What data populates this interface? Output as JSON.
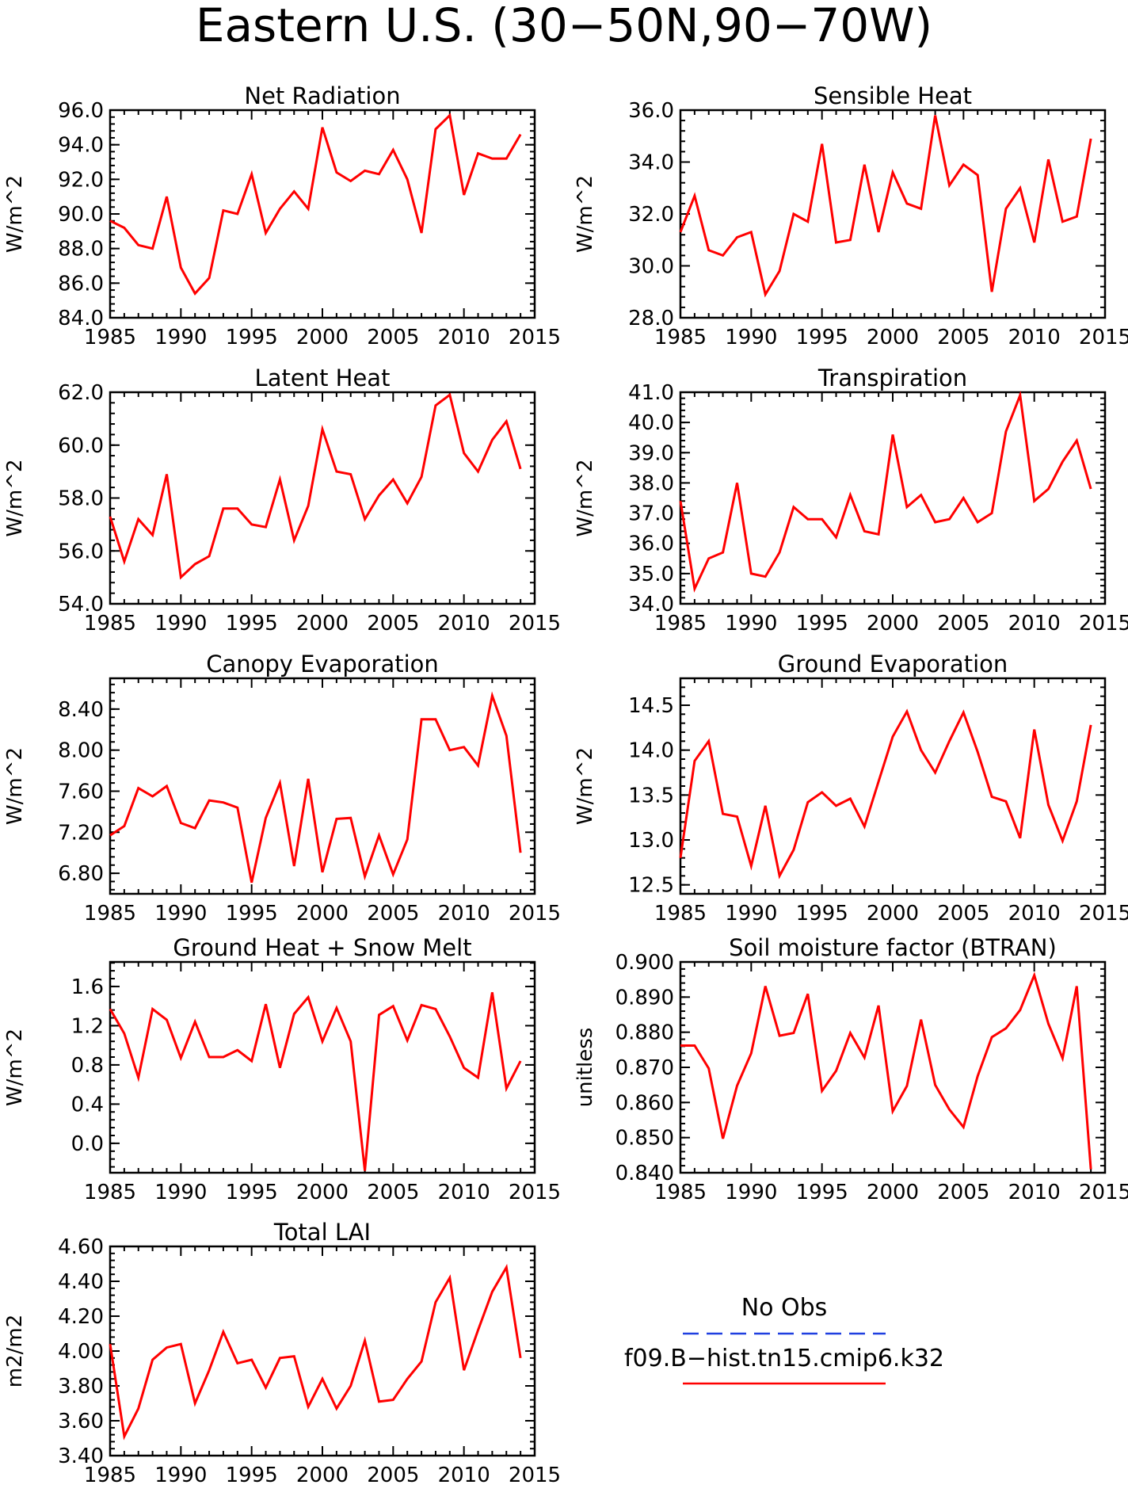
{
  "figure": {
    "title": "Eastern U.S. (30−50N,90−70W)",
    "legend": {
      "obs_label": "No Obs",
      "model_label": "f09.B−hist.tn15.cmip6.k32",
      "obs_color": "#1f3fe0",
      "model_color": "#ff0000"
    }
  },
  "chart_data": [
    {
      "type": "line",
      "title": "Net Radiation",
      "ylabel": "W/m^2",
      "xlim": [
        1985,
        2015
      ],
      "ylim": [
        84,
        96
      ],
      "xticks": [
        "1985",
        "1990",
        "1995",
        "2000",
        "2005",
        "2010",
        "2015"
      ],
      "yticks": [
        "84.0",
        "86.0",
        "88.0",
        "90.0",
        "92.0",
        "94.0",
        "96.0"
      ],
      "series": [
        {
          "color": "#ff0000",
          "x": [
            1985,
            1986,
            1987,
            1988,
            1989,
            1990,
            1991,
            1992,
            1993,
            1994,
            1995,
            1996,
            1997,
            1998,
            1999,
            2000,
            2001,
            2002,
            2003,
            2004,
            2005,
            2006,
            2007,
            2008,
            2009,
            2010,
            2011,
            2012,
            2013,
            2014
          ],
          "values": [
            89.6,
            89.2,
            88.2,
            88.0,
            91.0,
            86.9,
            85.4,
            86.3,
            90.2,
            90.0,
            92.3,
            88.9,
            90.3,
            91.3,
            90.3,
            95.0,
            92.4,
            91.9,
            92.5,
            92.3,
            93.7,
            92.0,
            88.9,
            94.9,
            95.7,
            91.1,
            93.5,
            93.2,
            93.2,
            94.6
          ]
        }
      ]
    },
    {
      "type": "line",
      "title": "Sensible Heat",
      "ylabel": "W/m^2",
      "xlim": [
        1985,
        2015
      ],
      "ylim": [
        28,
        36
      ],
      "xticks": [
        "1985",
        "1990",
        "1995",
        "2000",
        "2005",
        "2010",
        "2015"
      ],
      "yticks": [
        "28.0",
        "30.0",
        "32.0",
        "34.0",
        "36.0"
      ],
      "series": [
        {
          "color": "#ff0000",
          "x": [
            1985,
            1986,
            1987,
            1988,
            1989,
            1990,
            1991,
            1992,
            1993,
            1994,
            1995,
            1996,
            1997,
            1998,
            1999,
            2000,
            2001,
            2002,
            2003,
            2004,
            2005,
            2006,
            2007,
            2008,
            2009,
            2010,
            2011,
            2012,
            2013,
            2014
          ],
          "values": [
            31.3,
            32.7,
            30.6,
            30.4,
            31.1,
            31.3,
            28.9,
            29.8,
            32.0,
            31.7,
            34.7,
            30.9,
            31.0,
            33.9,
            31.3,
            33.6,
            32.4,
            32.2,
            35.8,
            33.1,
            33.9,
            33.5,
            29.0,
            32.2,
            33.0,
            30.9,
            34.1,
            31.7,
            31.9,
            34.9
          ]
        }
      ]
    },
    {
      "type": "line",
      "title": "Latent Heat",
      "ylabel": "W/m^2",
      "xlim": [
        1985,
        2015
      ],
      "ylim": [
        54,
        62
      ],
      "xticks": [
        "1985",
        "1990",
        "1995",
        "2000",
        "2005",
        "2010",
        "2015"
      ],
      "yticks": [
        "54.0",
        "56.0",
        "58.0",
        "60.0",
        "62.0"
      ],
      "series": [
        {
          "color": "#ff0000",
          "x": [
            1985,
            1986,
            1987,
            1988,
            1989,
            1990,
            1991,
            1992,
            1993,
            1994,
            1995,
            1996,
            1997,
            1998,
            1999,
            2000,
            2001,
            2002,
            2003,
            2004,
            2005,
            2006,
            2007,
            2008,
            2009,
            2010,
            2011,
            2012,
            2013,
            2014
          ],
          "values": [
            57.3,
            55.6,
            57.2,
            56.6,
            58.9,
            55.0,
            55.5,
            55.8,
            57.6,
            57.6,
            57.0,
            56.9,
            58.7,
            56.4,
            57.7,
            60.6,
            59.0,
            58.9,
            57.2,
            58.1,
            58.7,
            57.8,
            58.8,
            61.5,
            61.9,
            59.7,
            59.0,
            60.2,
            60.9,
            59.1
          ]
        }
      ]
    },
    {
      "type": "line",
      "title": "Transpiration",
      "ylabel": "W/m^2",
      "xlim": [
        1985,
        2015
      ],
      "ylim": [
        34,
        41
      ],
      "xticks": [
        "1985",
        "1990",
        "1995",
        "2000",
        "2005",
        "2010",
        "2015"
      ],
      "yticks": [
        "34.0",
        "35.0",
        "36.0",
        "37.0",
        "38.0",
        "39.0",
        "40.0",
        "41.0"
      ],
      "series": [
        {
          "color": "#ff0000",
          "x": [
            1985,
            1986,
            1987,
            1988,
            1989,
            1990,
            1991,
            1992,
            1993,
            1994,
            1995,
            1996,
            1997,
            1998,
            1999,
            2000,
            2001,
            2002,
            2003,
            2004,
            2005,
            2006,
            2007,
            2008,
            2009,
            2010,
            2011,
            2012,
            2013,
            2014
          ],
          "values": [
            37.4,
            34.5,
            35.5,
            35.7,
            38.0,
            35.0,
            34.9,
            35.7,
            37.2,
            36.8,
            36.8,
            36.2,
            37.6,
            36.4,
            36.3,
            39.6,
            37.2,
            37.6,
            36.7,
            36.8,
            37.5,
            36.7,
            37.0,
            39.7,
            40.9,
            37.4,
            37.8,
            38.7,
            39.4,
            37.8
          ]
        }
      ]
    },
    {
      "type": "line",
      "title": "Canopy Evaporation",
      "ylabel": "W/m^2",
      "xlim": [
        1985,
        2015
      ],
      "ylim": [
        6.6,
        8.7
      ],
      "xticks": [
        "1985",
        "1990",
        "1995",
        "2000",
        "2005",
        "2010",
        "2015"
      ],
      "yticks": [
        "6.80",
        "7.20",
        "7.60",
        "8.00",
        "8.40"
      ],
      "series": [
        {
          "color": "#ff0000",
          "x": [
            1985,
            1986,
            1987,
            1988,
            1989,
            1990,
            1991,
            1992,
            1993,
            1994,
            1995,
            1996,
            1997,
            1998,
            1999,
            2000,
            2001,
            2002,
            2003,
            2004,
            2005,
            2006,
            2007,
            2008,
            2009,
            2010,
            2011,
            2012,
            2013,
            2014
          ],
          "values": [
            7.17,
            7.26,
            7.63,
            7.55,
            7.65,
            7.29,
            7.24,
            7.51,
            7.49,
            7.44,
            6.71,
            7.34,
            7.68,
            6.87,
            7.72,
            6.81,
            7.33,
            7.34,
            6.77,
            7.17,
            6.79,
            7.13,
            8.3,
            8.3,
            8.0,
            8.03,
            7.85,
            8.53,
            8.14,
            7.0
          ]
        }
      ]
    },
    {
      "type": "line",
      "title": "Ground Evaporation",
      "ylabel": "W/m^2",
      "xlim": [
        1985,
        2015
      ],
      "ylim": [
        12.4,
        14.8
      ],
      "xticks": [
        "1985",
        "1990",
        "1995",
        "2000",
        "2005",
        "2010",
        "2015"
      ],
      "yticks": [
        "12.5",
        "13.0",
        "13.5",
        "14.0",
        "14.5"
      ],
      "series": [
        {
          "color": "#ff0000",
          "x": [
            1985,
            1986,
            1987,
            1988,
            1989,
            1990,
            1991,
            1992,
            1993,
            1994,
            1995,
            1996,
            1997,
            1998,
            1999,
            2000,
            2001,
            2002,
            2003,
            2004,
            2005,
            2006,
            2007,
            2008,
            2009,
            2010,
            2011,
            2012,
            2013,
            2014
          ],
          "values": [
            12.8,
            13.88,
            14.1,
            13.29,
            13.26,
            12.71,
            13.38,
            12.6,
            12.89,
            13.42,
            13.53,
            13.38,
            13.46,
            13.15,
            13.65,
            14.15,
            14.43,
            14.0,
            13.75,
            14.1,
            14.42,
            13.98,
            13.48,
            13.43,
            13.02,
            14.23,
            13.39,
            12.99,
            13.43,
            14.28
          ]
        }
      ]
    },
    {
      "type": "line",
      "title": "Ground Heat + Snow Melt",
      "ylabel": "W/m^2",
      "xlim": [
        1985,
        2015
      ],
      "ylim": [
        -0.3,
        1.85
      ],
      "xticks": [
        "1985",
        "1990",
        "1995",
        "2000",
        "2005",
        "2010",
        "2015"
      ],
      "yticks": [
        "0.0",
        "0.4",
        "0.8",
        "1.2",
        "1.6"
      ],
      "series": [
        {
          "color": "#ff0000",
          "x": [
            1985,
            1986,
            1987,
            1988,
            1989,
            1990,
            1991,
            1992,
            1993,
            1994,
            1995,
            1996,
            1997,
            1998,
            1999,
            2000,
            2001,
            2002,
            2003,
            2004,
            2005,
            2006,
            2007,
            2008,
            2009,
            2010,
            2011,
            2012,
            2013,
            2014
          ],
          "values": [
            1.37,
            1.12,
            0.67,
            1.37,
            1.26,
            0.87,
            1.24,
            0.88,
            0.88,
            0.95,
            0.84,
            1.42,
            0.77,
            1.32,
            1.49,
            1.04,
            1.38,
            1.04,
            -0.28,
            1.31,
            1.4,
            1.05,
            1.41,
            1.37,
            1.09,
            0.77,
            0.67,
            1.54,
            0.56,
            0.84
          ]
        }
      ]
    },
    {
      "type": "line",
      "title": "Soil moisture factor (BTRAN)",
      "ylabel": "unitless",
      "xlim": [
        1985,
        2015
      ],
      "ylim": [
        0.84,
        0.9
      ],
      "xticks": [
        "1985",
        "1990",
        "1995",
        "2000",
        "2005",
        "2010",
        "2015"
      ],
      "yticks": [
        "0.840",
        "0.850",
        "0.860",
        "0.870",
        "0.880",
        "0.890",
        "0.900"
      ],
      "series": [
        {
          "color": "#ff0000",
          "x": [
            1985,
            1986,
            1987,
            1988,
            1989,
            1990,
            1991,
            1992,
            1993,
            1994,
            1995,
            1996,
            1997,
            1998,
            1999,
            2000,
            2001,
            2002,
            2003,
            2004,
            2005,
            2006,
            2007,
            2008,
            2009,
            2010,
            2011,
            2012,
            2013,
            2014
          ],
          "values": [
            0.8762,
            0.8762,
            0.8697,
            0.8497,
            0.8648,
            0.874,
            0.8931,
            0.879,
            0.8798,
            0.8909,
            0.8633,
            0.869,
            0.8798,
            0.8728,
            0.8876,
            0.8575,
            0.8647,
            0.8836,
            0.865,
            0.858,
            0.853,
            0.8675,
            0.8786,
            0.8811,
            0.8863,
            0.8962,
            0.8824,
            0.8726,
            0.8931,
            0.841
          ]
        }
      ]
    },
    {
      "type": "line",
      "title": "Total LAI",
      "ylabel": "m2/m2",
      "xlim": [
        1985,
        2015
      ],
      "ylim": [
        3.4,
        4.6
      ],
      "xticks": [
        "1985",
        "1990",
        "1995",
        "2000",
        "2005",
        "2010",
        "2015"
      ],
      "yticks": [
        "3.40",
        "3.60",
        "3.80",
        "4.00",
        "4.20",
        "4.40",
        "4.60"
      ],
      "series": [
        {
          "color": "#ff0000",
          "x": [
            1985,
            1986,
            1987,
            1988,
            1989,
            1990,
            1991,
            1992,
            1993,
            1994,
            1995,
            1996,
            1997,
            1998,
            1999,
            2000,
            2001,
            2002,
            2003,
            2004,
            2005,
            2006,
            2007,
            2008,
            2009,
            2010,
            2011,
            2012,
            2013,
            2014
          ],
          "values": [
            4.04,
            3.51,
            3.67,
            3.95,
            4.02,
            4.04,
            3.7,
            3.89,
            4.11,
            3.93,
            3.95,
            3.79,
            3.96,
            3.97,
            3.68,
            3.84,
            3.67,
            3.8,
            4.06,
            3.71,
            3.72,
            3.84,
            3.94,
            4.28,
            4.42,
            3.89,
            4.12,
            4.34,
            4.48,
            3.96
          ]
        }
      ]
    }
  ]
}
